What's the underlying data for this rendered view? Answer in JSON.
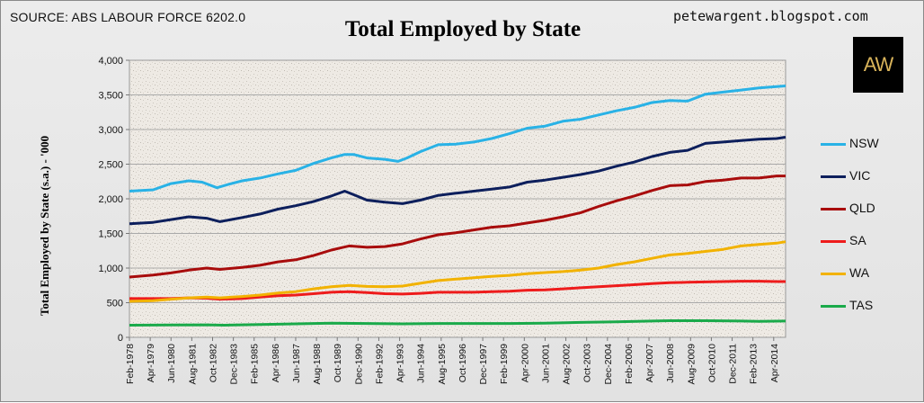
{
  "header": {
    "source": "SOURCE: ABS LABOUR FORCE 6202.0",
    "blog": "petewargent.blogspot.com",
    "logo_text": "AW"
  },
  "colors": {
    "NSW": "#29b2e6",
    "VIC": "#0d1f5c",
    "QLD": "#a80c0c",
    "SA": "#ee1c1c",
    "WA": "#f2b200",
    "TAS": "#1aaa4a"
  },
  "chart_data": {
    "type": "line",
    "title": "Total Employed by State",
    "xlabel": "",
    "ylabel": "Total Employed by State (s.a.) - '000",
    "ylim": [
      0,
      4000
    ],
    "yticks": [
      "0",
      "500",
      "1,000",
      "1,500",
      "2,000",
      "2,500",
      "3,000",
      "3,500",
      "4,000"
    ],
    "xlim": [
      "1978-02",
      "2014-12"
    ],
    "xticks": [
      "Feb-1978",
      "Apr-1979",
      "Jun-1980",
      "Aug-1981",
      "Oct-1982",
      "Dec-1983",
      "Feb-1985",
      "Apr-1986",
      "Jun-1987",
      "Aug-1988",
      "Oct-1989",
      "Dec-1990",
      "Feb-1992",
      "Apr-1993",
      "Jun-1994",
      "Aug-1995",
      "Oct-1996",
      "Dec-1997",
      "Feb-1999",
      "Apr-2000",
      "Jun-2001",
      "Aug-2002",
      "Oct-2003",
      "Dec-2004",
      "Feb-2006",
      "Apr-2007",
      "Jun-2008",
      "Aug-2009",
      "Oct-2010",
      "Dec-2011",
      "Feb-2013",
      "Apr-2014"
    ],
    "grid": true,
    "legend_position": "right",
    "series": [
      {
        "name": "NSW",
        "points": [
          [
            "1978-02",
            2110
          ],
          [
            "1979-06",
            2130
          ],
          [
            "1980-06",
            2220
          ],
          [
            "1981-06",
            2260
          ],
          [
            "1982-03",
            2240
          ],
          [
            "1983-01",
            2160
          ],
          [
            "1983-09",
            2210
          ],
          [
            "1984-06",
            2260
          ],
          [
            "1985-06",
            2300
          ],
          [
            "1986-06",
            2360
          ],
          [
            "1987-06",
            2410
          ],
          [
            "1988-06",
            2510
          ],
          [
            "1989-06",
            2590
          ],
          [
            "1990-03",
            2640
          ],
          [
            "1990-09",
            2640
          ],
          [
            "1991-06",
            2590
          ],
          [
            "1992-06",
            2570
          ],
          [
            "1993-03",
            2540
          ],
          [
            "1993-09",
            2590
          ],
          [
            "1994-06",
            2680
          ],
          [
            "1995-06",
            2780
          ],
          [
            "1996-06",
            2790
          ],
          [
            "1997-06",
            2820
          ],
          [
            "1998-06",
            2870
          ],
          [
            "1999-06",
            2940
          ],
          [
            "2000-06",
            3020
          ],
          [
            "2001-06",
            3050
          ],
          [
            "2002-06",
            3120
          ],
          [
            "2003-06",
            3150
          ],
          [
            "2004-06",
            3210
          ],
          [
            "2005-06",
            3270
          ],
          [
            "2006-06",
            3320
          ],
          [
            "2007-06",
            3390
          ],
          [
            "2008-06",
            3420
          ],
          [
            "2009-06",
            3410
          ],
          [
            "2010-06",
            3510
          ],
          [
            "2011-06",
            3540
          ],
          [
            "2012-06",
            3570
          ],
          [
            "2013-06",
            3600
          ],
          [
            "2014-06",
            3620
          ],
          [
            "2014-12",
            3630
          ]
        ]
      },
      {
        "name": "VIC",
        "points": [
          [
            "1978-02",
            1640
          ],
          [
            "1979-06",
            1660
          ],
          [
            "1980-06",
            1700
          ],
          [
            "1981-06",
            1740
          ],
          [
            "1982-06",
            1720
          ],
          [
            "1983-03",
            1670
          ],
          [
            "1984-06",
            1730
          ],
          [
            "1985-06",
            1780
          ],
          [
            "1986-06",
            1850
          ],
          [
            "1987-06",
            1900
          ],
          [
            "1988-06",
            1960
          ],
          [
            "1989-06",
            2040
          ],
          [
            "1990-03",
            2110
          ],
          [
            "1990-09",
            2060
          ],
          [
            "1991-06",
            1980
          ],
          [
            "1992-06",
            1950
          ],
          [
            "1993-06",
            1930
          ],
          [
            "1994-06",
            1980
          ],
          [
            "1995-06",
            2050
          ],
          [
            "1996-06",
            2080
          ],
          [
            "1997-06",
            2110
          ],
          [
            "1998-06",
            2140
          ],
          [
            "1999-06",
            2170
          ],
          [
            "2000-06",
            2240
          ],
          [
            "2001-06",
            2270
          ],
          [
            "2002-06",
            2310
          ],
          [
            "2003-06",
            2350
          ],
          [
            "2004-06",
            2400
          ],
          [
            "2005-06",
            2470
          ],
          [
            "2006-06",
            2530
          ],
          [
            "2007-06",
            2610
          ],
          [
            "2008-06",
            2670
          ],
          [
            "2009-06",
            2700
          ],
          [
            "2010-06",
            2800
          ],
          [
            "2011-06",
            2820
          ],
          [
            "2012-06",
            2840
          ],
          [
            "2013-06",
            2860
          ],
          [
            "2014-06",
            2870
          ],
          [
            "2014-12",
            2890
          ]
        ]
      },
      {
        "name": "QLD",
        "points": [
          [
            "1978-02",
            870
          ],
          [
            "1979-06",
            900
          ],
          [
            "1980-06",
            930
          ],
          [
            "1981-06",
            970
          ],
          [
            "1982-06",
            1000
          ],
          [
            "1983-03",
            980
          ],
          [
            "1984-06",
            1010
          ],
          [
            "1985-06",
            1040
          ],
          [
            "1986-06",
            1090
          ],
          [
            "1987-06",
            1120
          ],
          [
            "1988-06",
            1180
          ],
          [
            "1989-06",
            1260
          ],
          [
            "1990-06",
            1320
          ],
          [
            "1991-06",
            1300
          ],
          [
            "1992-06",
            1310
          ],
          [
            "1993-06",
            1350
          ],
          [
            "1994-06",
            1420
          ],
          [
            "1995-06",
            1480
          ],
          [
            "1996-06",
            1510
          ],
          [
            "1997-06",
            1550
          ],
          [
            "1998-06",
            1590
          ],
          [
            "1999-06",
            1610
          ],
          [
            "2000-06",
            1650
          ],
          [
            "2001-06",
            1690
          ],
          [
            "2002-06",
            1740
          ],
          [
            "2003-06",
            1800
          ],
          [
            "2004-06",
            1890
          ],
          [
            "2005-06",
            1970
          ],
          [
            "2006-06",
            2040
          ],
          [
            "2007-06",
            2120
          ],
          [
            "2008-06",
            2190
          ],
          [
            "2009-06",
            2200
          ],
          [
            "2010-06",
            2250
          ],
          [
            "2011-06",
            2270
          ],
          [
            "2012-06",
            2300
          ],
          [
            "2013-06",
            2300
          ],
          [
            "2014-06",
            2330
          ],
          [
            "2014-12",
            2330
          ]
        ]
      },
      {
        "name": "SA",
        "points": [
          [
            "1978-02",
            560
          ],
          [
            "1979-06",
            560
          ],
          [
            "1980-06",
            560
          ],
          [
            "1981-06",
            570
          ],
          [
            "1982-06",
            565
          ],
          [
            "1983-03",
            550
          ],
          [
            "1984-06",
            560
          ],
          [
            "1985-06",
            580
          ],
          [
            "1986-06",
            600
          ],
          [
            "1987-06",
            610
          ],
          [
            "1988-06",
            630
          ],
          [
            "1989-06",
            650
          ],
          [
            "1990-06",
            660
          ],
          [
            "1991-06",
            645
          ],
          [
            "1992-06",
            630
          ],
          [
            "1993-06",
            625
          ],
          [
            "1994-06",
            635
          ],
          [
            "1995-06",
            650
          ],
          [
            "1996-06",
            650
          ],
          [
            "1997-06",
            650
          ],
          [
            "1998-06",
            660
          ],
          [
            "1999-06",
            665
          ],
          [
            "2000-06",
            680
          ],
          [
            "2001-06",
            685
          ],
          [
            "2002-06",
            700
          ],
          [
            "2003-06",
            715
          ],
          [
            "2004-06",
            730
          ],
          [
            "2005-06",
            745
          ],
          [
            "2006-06",
            760
          ],
          [
            "2007-06",
            775
          ],
          [
            "2008-06",
            790
          ],
          [
            "2009-06",
            795
          ],
          [
            "2010-06",
            800
          ],
          [
            "2011-06",
            805
          ],
          [
            "2012-06",
            810
          ],
          [
            "2013-06",
            810
          ],
          [
            "2014-06",
            805
          ],
          [
            "2014-12",
            805
          ]
        ]
      },
      {
        "name": "WA",
        "points": [
          [
            "1978-02",
            520
          ],
          [
            "1979-06",
            530
          ],
          [
            "1980-06",
            550
          ],
          [
            "1981-06",
            570
          ],
          [
            "1982-06",
            580
          ],
          [
            "1983-03",
            570
          ],
          [
            "1984-06",
            590
          ],
          [
            "1985-06",
            610
          ],
          [
            "1986-06",
            640
          ],
          [
            "1987-06",
            660
          ],
          [
            "1988-06",
            700
          ],
          [
            "1989-06",
            730
          ],
          [
            "1990-06",
            750
          ],
          [
            "1991-06",
            735
          ],
          [
            "1992-06",
            730
          ],
          [
            "1993-06",
            740
          ],
          [
            "1994-06",
            780
          ],
          [
            "1995-06",
            820
          ],
          [
            "1996-06",
            840
          ],
          [
            "1997-06",
            860
          ],
          [
            "1998-06",
            880
          ],
          [
            "1999-06",
            895
          ],
          [
            "2000-06",
            920
          ],
          [
            "2001-06",
            935
          ],
          [
            "2002-06",
            950
          ],
          [
            "2003-06",
            970
          ],
          [
            "2004-06",
            1000
          ],
          [
            "2005-06",
            1050
          ],
          [
            "2006-06",
            1090
          ],
          [
            "2007-06",
            1140
          ],
          [
            "2008-06",
            1190
          ],
          [
            "2009-06",
            1210
          ],
          [
            "2010-06",
            1240
          ],
          [
            "2011-06",
            1270
          ],
          [
            "2012-06",
            1320
          ],
          [
            "2013-06",
            1340
          ],
          [
            "2014-06",
            1360
          ],
          [
            "2014-12",
            1380
          ]
        ]
      },
      {
        "name": "TAS",
        "points": [
          [
            "1978-02",
            175
          ],
          [
            "1980-06",
            178
          ],
          [
            "1982-06",
            180
          ],
          [
            "1983-06",
            175
          ],
          [
            "1985-06",
            185
          ],
          [
            "1987-06",
            195
          ],
          [
            "1989-06",
            205
          ],
          [
            "1991-06",
            200
          ],
          [
            "1993-06",
            195
          ],
          [
            "1995-06",
            200
          ],
          [
            "1997-06",
            200
          ],
          [
            "1999-06",
            200
          ],
          [
            "2001-06",
            205
          ],
          [
            "2003-06",
            215
          ],
          [
            "2005-06",
            225
          ],
          [
            "2007-06",
            235
          ],
          [
            "2008-06",
            240
          ],
          [
            "2010-06",
            240
          ],
          [
            "2012-06",
            235
          ],
          [
            "2013-06",
            230
          ],
          [
            "2014-12",
            235
          ]
        ]
      }
    ]
  }
}
